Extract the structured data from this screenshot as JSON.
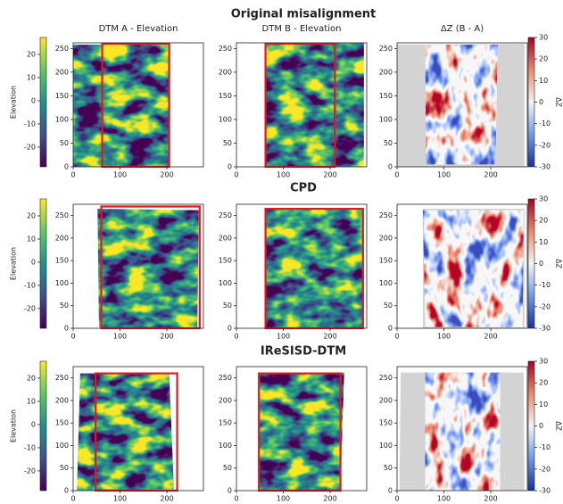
{
  "row_titles": [
    "Original misalignment",
    "CPD",
    "IReSISD-DTM"
  ],
  "colorbars": [
    {
      "label": "Elevation",
      "lim": [
        -28.5,
        27.3
      ],
      "ticks": [
        -20,
        -10,
        0,
        10,
        20
      ]
    },
    {
      "label": "ΔZ",
      "lim": [
        -30,
        30
      ],
      "ticks": [
        -30,
        -20,
        -10,
        0,
        10,
        20,
        30
      ]
    },
    {
      "label": "Elevation",
      "lim": [
        -28.5,
        27.3
      ],
      "ticks": [
        -20,
        -10,
        0,
        10,
        20
      ]
    },
    {
      "label": "ΔZ",
      "lim": [
        -30,
        30
      ],
      "ticks": [
        -30,
        -20,
        -10,
        0,
        10,
        20,
        30
      ]
    },
    {
      "label": "Elevation",
      "lim": [
        -28.5,
        27.3
      ],
      "ticks": [
        -20,
        -10,
        0,
        10,
        20
      ]
    },
    {
      "label": "ΔZ",
      "lim": [
        -30,
        30
      ],
      "ticks": [
        -30,
        -20,
        -10,
        0,
        10,
        20,
        30
      ]
    }
  ],
  "chart_data": [
    {
      "type": "heatmap",
      "title": "DTM A - Elevation",
      "xlim": [
        0,
        278
      ],
      "ylim": [
        0,
        262
      ],
      "xticks": [
        0,
        100,
        200
      ],
      "yticks": [
        0,
        50,
        100,
        150,
        200,
        250
      ]
    },
    {
      "type": "heatmap",
      "title": "DTM B - Elevation",
      "xlim": [
        0,
        278
      ],
      "ylim": [
        0,
        262
      ],
      "xticks": [
        0,
        100,
        200
      ],
      "yticks": [
        0,
        50,
        100,
        150,
        200,
        250
      ]
    },
    {
      "type": "heatmap",
      "title": "ΔZ (B - A)",
      "xlim": [
        0,
        278
      ],
      "ylim": [
        0,
        262
      ],
      "xticks": [
        0,
        100,
        200
      ],
      "yticks": [
        0,
        50,
        100,
        150,
        200,
        250
      ]
    },
    {
      "type": "heatmap",
      "xlim": [
        0,
        278
      ],
      "ylim": [
        0,
        275
      ],
      "xticks": [
        0,
        100,
        200
      ],
      "yticks": [
        0,
        50,
        100,
        150,
        200,
        250
      ]
    },
    {
      "type": "heatmap",
      "xlim": [
        0,
        278
      ],
      "ylim": [
        0,
        275
      ],
      "xticks": [
        0,
        100,
        200
      ],
      "yticks": [
        0,
        50,
        100,
        150,
        200,
        250
      ]
    },
    {
      "type": "heatmap",
      "xlim": [
        0,
        278
      ],
      "ylim": [
        0,
        275
      ],
      "xticks": [
        0,
        100,
        200
      ],
      "yticks": [
        0,
        50,
        100,
        150,
        200,
        250
      ]
    },
    {
      "type": "heatmap",
      "xlim": [
        0,
        278
      ],
      "ylim": [
        0,
        275
      ],
      "xticks": [
        0,
        100,
        200
      ],
      "yticks": [
        0,
        50,
        100,
        150,
        200,
        250
      ]
    },
    {
      "type": "heatmap",
      "xlim": [
        0,
        278
      ],
      "ylim": [
        0,
        275
      ],
      "xticks": [
        0,
        100,
        200
      ],
      "yticks": [
        0,
        50,
        100,
        150,
        200,
        250
      ]
    },
    {
      "type": "heatmap",
      "xlim": [
        0,
        278
      ],
      "ylim": [
        0,
        275
      ],
      "xticks": [
        0,
        100,
        200
      ],
      "yticks": [
        0,
        50,
        100,
        150,
        200,
        250
      ]
    }
  ]
}
